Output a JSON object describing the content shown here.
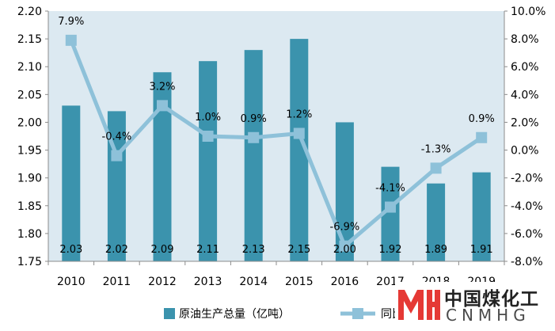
{
  "chart_data": {
    "type": "bar",
    "categories": [
      "2010",
      "2011",
      "2012",
      "2013",
      "2014",
      "2015",
      "2016",
      "2017",
      "2018",
      "2019"
    ],
    "series": [
      {
        "name": "原油生产总量（亿吨）",
        "kind": "bar",
        "axis": "left",
        "color": "#3b93ad",
        "values": [
          2.03,
          2.02,
          2.09,
          2.11,
          2.13,
          2.15,
          2.0,
          1.92,
          1.89,
          1.91
        ],
        "labels": [
          "2.03",
          "2.02",
          "2.09",
          "2.11",
          "2.13",
          "2.15",
          "2.00",
          "1.92",
          "1.89",
          "1.91"
        ]
      },
      {
        "name": "同比",
        "kind": "line",
        "axis": "right",
        "color": "#8ec1d9",
        "values": [
          7.9,
          -0.4,
          3.2,
          1.0,
          0.9,
          1.2,
          -6.9,
          -4.1,
          -1.3,
          0.9
        ],
        "labels": [
          "7.9%",
          "-0.4%",
          "3.2%",
          "1.0%",
          "0.9%",
          "1.2%",
          "-6.9%",
          "-4.1%",
          "-1.3%",
          "0.9%"
        ]
      }
    ],
    "y_left": {
      "ylim": [
        1.75,
        2.2
      ],
      "ticks": [
        "1.75",
        "1.80",
        "1.85",
        "1.90",
        "1.95",
        "2.00",
        "2.05",
        "2.10",
        "2.15",
        "2.20"
      ]
    },
    "y_right": {
      "ylim": [
        -8.0,
        10.0
      ],
      "ticks": [
        "-8.0%",
        "-6.0%",
        "-4.0%",
        "-2.0%",
        "0.0%",
        "2.0%",
        "4.0%",
        "6.0%",
        "8.0%",
        "10.0%"
      ]
    },
    "grid": false,
    "legend": "bottom",
    "plot_background": "#dce9f1"
  },
  "logo": {
    "text_cn": "中国煤化工",
    "text_en": "CNMHG",
    "color": "#e53935"
  }
}
